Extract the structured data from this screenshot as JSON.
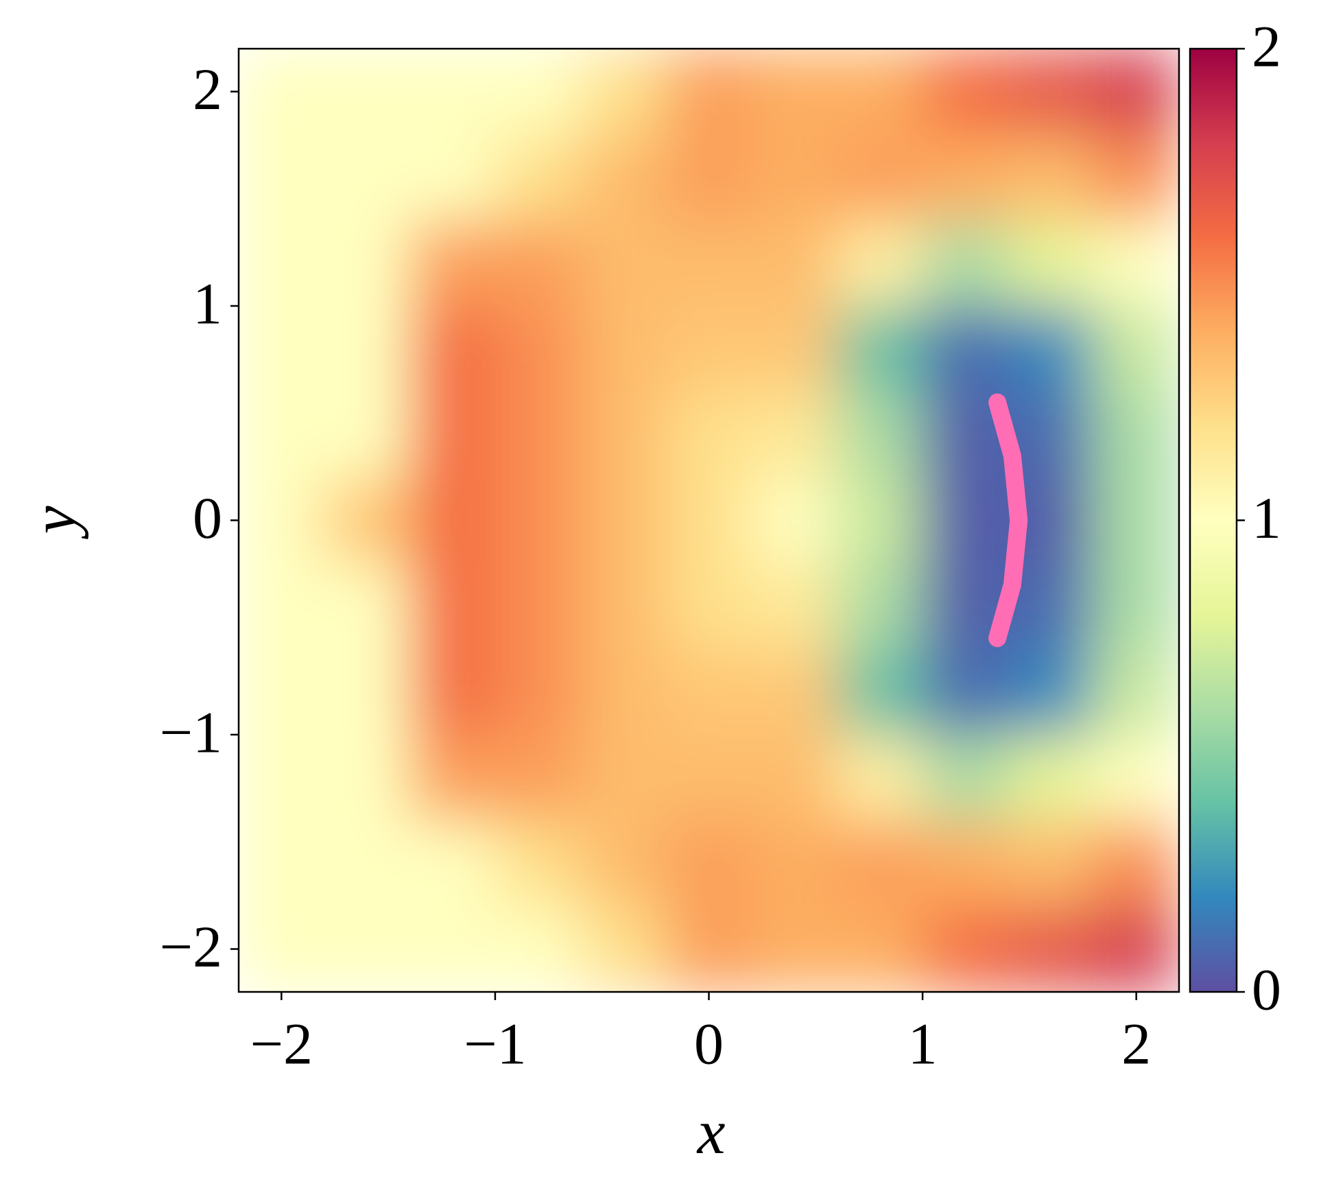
{
  "chart_data": {
    "type": "contour",
    "xlabel": "x",
    "ylabel": "y",
    "xlim": [
      -2.2,
      2.2
    ],
    "ylim": [
      -2.2,
      2.2
    ],
    "xticks": [
      {
        "value": -2,
        "label": "−2"
      },
      {
        "value": -1,
        "label": "−1"
      },
      0,
      1,
      2
    ],
    "yticks": [
      {
        "value": -2,
        "label": "−2"
      },
      {
        "value": -1,
        "label": "−1"
      },
      0,
      1,
      2
    ],
    "x": [
      -2.0,
      -1.6,
      -1.2,
      -0.8,
      -0.4,
      0.0,
      0.4,
      0.8,
      1.2,
      1.6,
      2.0
    ],
    "y": [
      -2.0,
      -1.6,
      -1.2,
      -0.8,
      -0.4,
      0.0,
      0.4,
      0.8,
      1.2,
      1.6,
      2.0
    ],
    "z": [
      [
        1.0,
        1.0,
        1.0,
        1.0,
        1.2,
        1.45,
        1.4,
        1.4,
        1.6,
        1.7,
        1.8
      ],
      [
        1.0,
        1.0,
        1.0,
        1.2,
        1.35,
        1.45,
        1.4,
        1.45,
        1.4,
        1.35,
        1.5
      ],
      [
        1.0,
        1.0,
        1.45,
        1.45,
        1.35,
        1.35,
        1.35,
        1.1,
        0.6,
        0.8,
        1.0
      ],
      [
        1.0,
        1.0,
        1.6,
        1.5,
        1.35,
        1.3,
        1.3,
        0.4,
        0.1,
        0.2,
        0.7
      ],
      [
        1.0,
        1.0,
        1.6,
        1.5,
        1.35,
        1.2,
        1.15,
        0.6,
        0.05,
        0.1,
        0.6
      ],
      [
        1.0,
        1.3,
        1.6,
        1.5,
        1.35,
        1.2,
        1.0,
        0.7,
        0.05,
        0.05,
        0.6
      ],
      [
        1.0,
        1.0,
        1.6,
        1.5,
        1.35,
        1.2,
        1.15,
        0.6,
        0.05,
        0.1,
        0.6
      ],
      [
        1.0,
        1.0,
        1.6,
        1.5,
        1.35,
        1.3,
        1.3,
        0.4,
        0.1,
        0.2,
        0.7
      ],
      [
        1.0,
        1.0,
        1.45,
        1.45,
        1.35,
        1.35,
        1.35,
        1.1,
        0.6,
        0.8,
        1.0
      ],
      [
        1.0,
        1.0,
        1.0,
        1.2,
        1.35,
        1.45,
        1.4,
        1.45,
        1.4,
        1.35,
        1.5
      ],
      [
        1.0,
        1.0,
        1.0,
        1.0,
        1.2,
        1.45,
        1.4,
        1.4,
        1.6,
        1.7,
        1.8
      ]
    ],
    "clim": [
      0,
      2
    ],
    "cticks": [
      0,
      1,
      2
    ],
    "colormap": [
      "#5e4fa2",
      "#3288bd",
      "#66c2a5",
      "#abdda4",
      "#e6f598",
      "#ffffbf",
      "#fee08b",
      "#fdae61",
      "#f46d43",
      "#d53e4f",
      "#9e0142"
    ],
    "curve": {
      "color": "#ff6eb4",
      "x": [
        1.35,
        1.42,
        1.45,
        1.42,
        1.35
      ],
      "y": [
        -0.55,
        -0.3,
        0.0,
        0.3,
        0.55
      ]
    }
  }
}
